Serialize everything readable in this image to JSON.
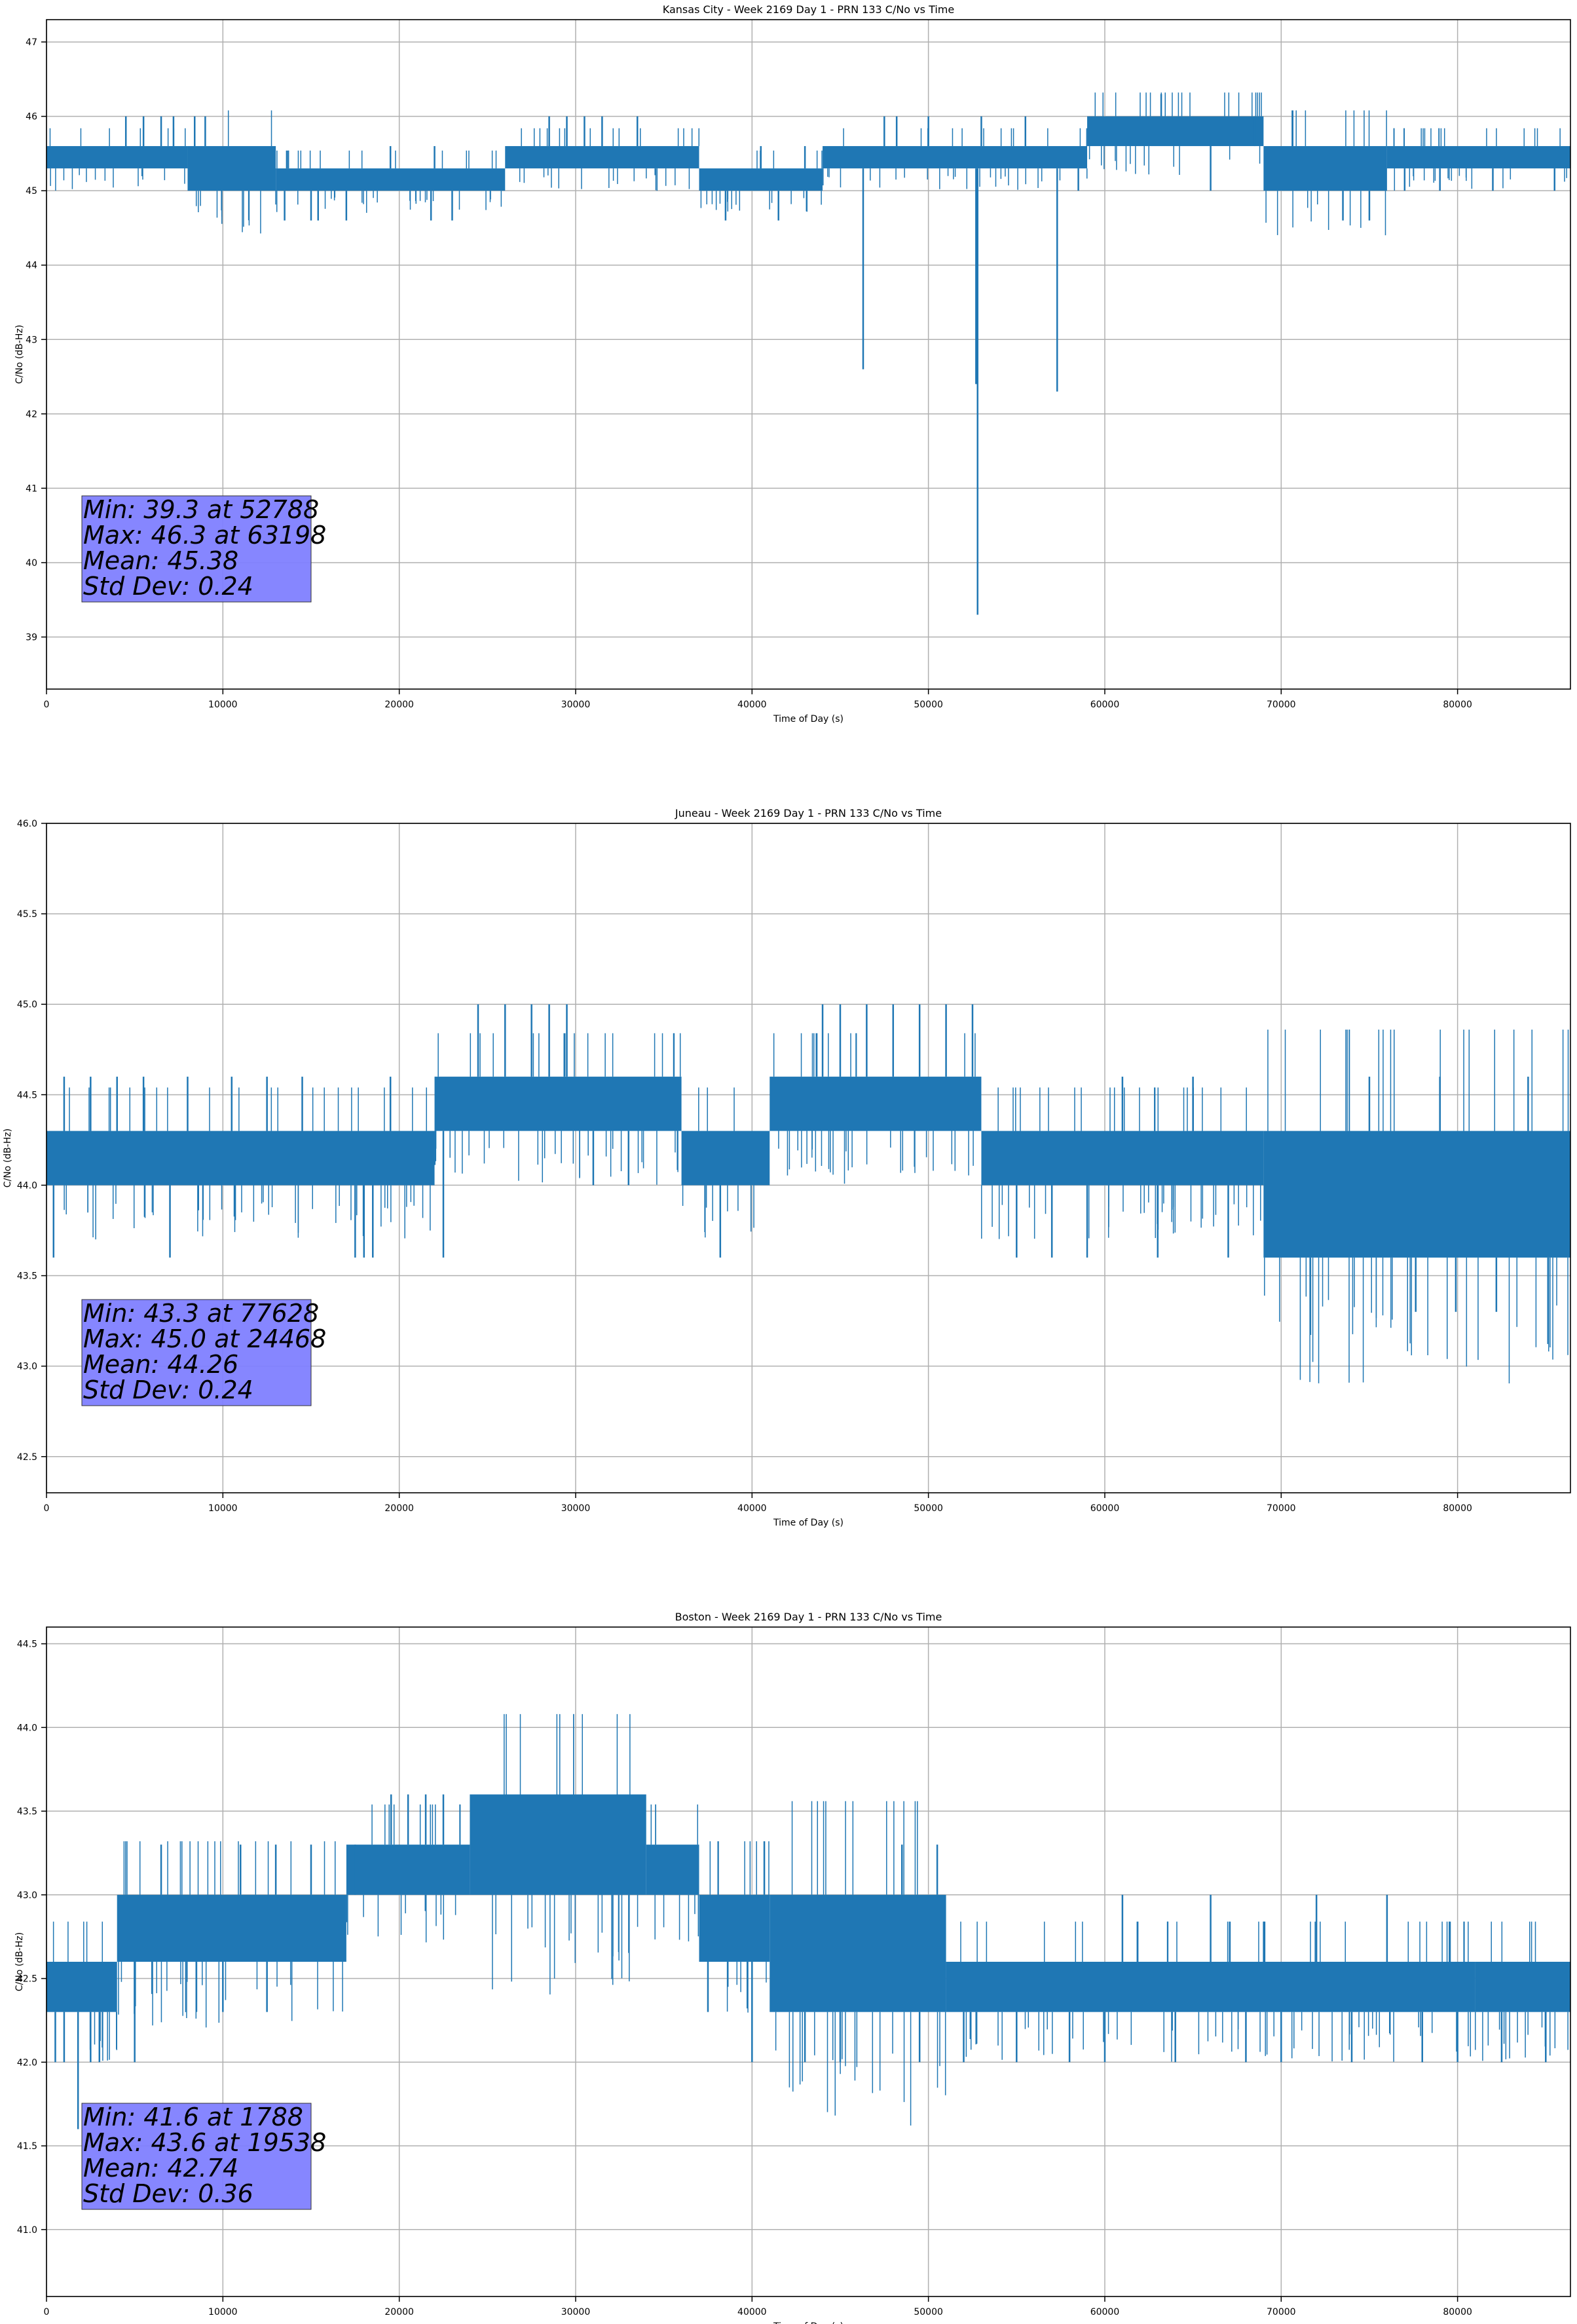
{
  "chart_data": [
    {
      "type": "line",
      "title": "Kansas City - Week 2169 Day 1 - PRN 133 C/No vs Time",
      "xlabel": "Time of Day (s)",
      "ylabel": "C/No (dB-Hz)",
      "xlim": [
        0,
        86400
      ],
      "ylim": [
        38.3,
        47.3
      ],
      "xticks": [
        0,
        10000,
        20000,
        30000,
        40000,
        50000,
        60000,
        70000,
        80000
      ],
      "yticks": [
        39,
        40,
        41,
        42,
        43,
        44,
        45,
        46,
        47
      ],
      "grid": true,
      "color": "#1f77b4",
      "series": [
        {
          "name": "C/No",
          "bands": [
            {
              "x": [
                0,
                8000
              ],
              "lo": 45.3,
              "hi": 45.6
            },
            {
              "x": [
                8000,
                13000
              ],
              "lo": 45.0,
              "hi": 45.6
            },
            {
              "x": [
                13000,
                26000
              ],
              "lo": 45.0,
              "hi": 45.3
            },
            {
              "x": [
                26000,
                37000
              ],
              "lo": 45.3,
              "hi": 45.6
            },
            {
              "x": [
                37000,
                44000
              ],
              "lo": 45.0,
              "hi": 45.3
            },
            {
              "x": [
                44000,
                59000
              ],
              "lo": 45.3,
              "hi": 45.6
            },
            {
              "x": [
                59000,
                69000
              ],
              "lo": 45.6,
              "hi": 46.0
            },
            {
              "x": [
                69000,
                76000
              ],
              "lo": 45.0,
              "hi": 45.6
            },
            {
              "x": [
                76000,
                86400
              ],
              "lo": 45.3,
              "hi": 45.6
            }
          ],
          "spikes": [
            [
              4500,
              46.0
            ],
            [
              5500,
              46.0
            ],
            [
              6500,
              46.0
            ],
            [
              7200,
              46.0
            ],
            [
              8400,
              46.0
            ],
            [
              9000,
              46.0
            ],
            [
              9800,
              45.0
            ],
            [
              11800,
              45.0
            ],
            [
              13500,
              44.6
            ],
            [
              15000,
              44.6
            ],
            [
              15400,
              44.6
            ],
            [
              17000,
              44.6
            ],
            [
              19500,
              45.6
            ],
            [
              21800,
              44.6
            ],
            [
              22000,
              45.6
            ],
            [
              23000,
              44.6
            ],
            [
              25000,
              45.0
            ],
            [
              28500,
              46.0
            ],
            [
              29500,
              46.0
            ],
            [
              30500,
              46.0
            ],
            [
              31500,
              46.0
            ],
            [
              33500,
              46.0
            ],
            [
              38000,
              45.0
            ],
            [
              38500,
              44.6
            ],
            [
              40500,
              45.6
            ],
            [
              41500,
              44.6
            ],
            [
              43000,
              45.6
            ],
            [
              46300,
              42.6
            ],
            [
              47500,
              46.0
            ],
            [
              48200,
              46.0
            ],
            [
              50000,
              46.0
            ],
            [
              52700,
              42.4
            ],
            [
              52788,
              39.3
            ],
            [
              53000,
              46.0
            ],
            [
              55500,
              46.0
            ],
            [
              57300,
              42.3
            ],
            [
              58500,
              45.0
            ],
            [
              63198,
              46.3
            ],
            [
              66000,
              45.0
            ],
            [
              68500,
              46.0
            ],
            [
              71000,
              45.0
            ],
            [
              73500,
              44.6
            ],
            [
              74500,
              45.0
            ],
            [
              75000,
              44.6
            ],
            [
              77000,
              45.0
            ],
            [
              79000,
              45.0
            ],
            [
              82000,
              45.0
            ],
            [
              85500,
              45.0
            ]
          ]
        }
      ],
      "stats": [
        "Min: 39.3 at 52788",
        "Max: 46.3 at 63198",
        "Mean: 45.38",
        "Std Dev: 0.24"
      ],
      "stats_box_color": "#8080ff"
    },
    {
      "type": "line",
      "title": "Juneau - Week 2169 Day 1 - PRN 133 C/No vs Time",
      "xlabel": "Time of Day (s)",
      "ylabel": "C/No (dB-Hz)",
      "xlim": [
        0,
        86400
      ],
      "ylim": [
        42.3,
        46.0
      ],
      "xticks": [
        0,
        10000,
        20000,
        30000,
        40000,
        50000,
        60000,
        70000,
        80000
      ],
      "yticks": [
        42.5,
        43.0,
        43.5,
        44.0,
        44.5,
        45.0,
        45.5,
        46.0
      ],
      "grid": true,
      "color": "#1f77b4",
      "series": [
        {
          "name": "C/No",
          "bands": [
            {
              "x": [
                0,
                22000
              ],
              "lo": 44.0,
              "hi": 44.3
            },
            {
              "x": [
                22000,
                36000
              ],
              "lo": 44.3,
              "hi": 44.6
            },
            {
              "x": [
                36000,
                41000
              ],
              "lo": 44.0,
              "hi": 44.3
            },
            {
              "x": [
                41000,
                53000
              ],
              "lo": 44.3,
              "hi": 44.6
            },
            {
              "x": [
                53000,
                69000
              ],
              "lo": 44.0,
              "hi": 44.3
            },
            {
              "x": [
                69000,
                86400
              ],
              "lo": 43.6,
              "hi": 44.3
            }
          ],
          "spikes": [
            [
              400,
              43.6
            ],
            [
              1000,
              44.6
            ],
            [
              2500,
              44.6
            ],
            [
              4000,
              44.6
            ],
            [
              5500,
              44.6
            ],
            [
              7000,
              43.6
            ],
            [
              8000,
              44.6
            ],
            [
              10500,
              44.6
            ],
            [
              12500,
              44.6
            ],
            [
              14500,
              44.6
            ],
            [
              17500,
              43.6
            ],
            [
              18000,
              43.6
            ],
            [
              18500,
              43.6
            ],
            [
              19500,
              44.6
            ],
            [
              22500,
              43.6
            ],
            [
              24468,
              45.0
            ],
            [
              26000,
              45.0
            ],
            [
              27500,
              45.0
            ],
            [
              28500,
              45.0
            ],
            [
              29500,
              45.0
            ],
            [
              31000,
              44.0
            ],
            [
              33000,
              44.0
            ],
            [
              38200,
              43.6
            ],
            [
              44000,
              45.0
            ],
            [
              45000,
              45.0
            ],
            [
              46500,
              45.0
            ],
            [
              48000,
              45.0
            ],
            [
              49500,
              45.0
            ],
            [
              51000,
              45.0
            ],
            [
              52500,
              45.0
            ],
            [
              55000,
              43.6
            ],
            [
              57000,
              43.6
            ],
            [
              59000,
              43.6
            ],
            [
              61000,
              44.6
            ],
            [
              63000,
              43.6
            ],
            [
              65000,
              44.6
            ],
            [
              67000,
              43.6
            ],
            [
              72000,
              43.6
            ],
            [
              75000,
              44.6
            ],
            [
              77628,
              43.3
            ],
            [
              79000,
              44.6
            ],
            [
              79900,
              43.3
            ],
            [
              82200,
              43.3
            ],
            [
              84000,
              44.6
            ]
          ]
        }
      ],
      "stats": [
        "Min: 43.3 at 77628",
        "Max: 45.0 at 24468",
        "Mean: 44.26",
        "Std Dev: 0.24"
      ],
      "stats_box_color": "#8080ff"
    },
    {
      "type": "line",
      "title": "Boston - Week 2169 Day 1 - PRN 133 C/No vs Time",
      "xlabel": "Time of Day (s)",
      "ylabel": "C/No (dB-Hz)",
      "xlim": [
        0,
        86400
      ],
      "ylim": [
        40.6,
        44.6
      ],
      "xticks": [
        0,
        10000,
        20000,
        30000,
        40000,
        50000,
        60000,
        70000,
        80000
      ],
      "yticks": [
        41.0,
        41.5,
        42.0,
        42.5,
        43.0,
        43.5,
        44.0,
        44.5
      ],
      "grid": true,
      "color": "#1f77b4",
      "series": [
        {
          "name": "C/No",
          "bands": [
            {
              "x": [
                0,
                4000
              ],
              "lo": 42.3,
              "hi": 42.6
            },
            {
              "x": [
                4000,
                17000
              ],
              "lo": 42.6,
              "hi": 43.0
            },
            {
              "x": [
                17000,
                24000
              ],
              "lo": 43.0,
              "hi": 43.3
            },
            {
              "x": [
                24000,
                34000
              ],
              "lo": 43.0,
              "hi": 43.6
            },
            {
              "x": [
                34000,
                37000
              ],
              "lo": 43.0,
              "hi": 43.3
            },
            {
              "x": [
                37000,
                41000
              ],
              "lo": 42.6,
              "hi": 43.0
            },
            {
              "x": [
                41000,
                51000
              ],
              "lo": 42.3,
              "hi": 43.0
            },
            {
              "x": [
                51000,
                81000
              ],
              "lo": 42.3,
              "hi": 42.6
            },
            {
              "x": [
                81000,
                86400
              ],
              "lo": 42.3,
              "hi": 42.6
            }
          ],
          "spikes": [
            [
              500,
              42.0
            ],
            [
              1000,
              42.0
            ],
            [
              1788,
              41.6
            ],
            [
              2500,
              42.0
            ],
            [
              3000,
              42.0
            ],
            [
              5000,
              42.0
            ],
            [
              6500,
              43.3
            ],
            [
              8500,
              42.3
            ],
            [
              10000,
              42.3
            ],
            [
              11000,
              43.3
            ],
            [
              12500,
              42.3
            ],
            [
              13000,
              43.3
            ],
            [
              15000,
              43.3
            ],
            [
              17500,
              43.3
            ],
            [
              19538,
              43.6
            ],
            [
              20500,
              43.6
            ],
            [
              21500,
              43.6
            ],
            [
              22500,
              43.6
            ],
            [
              37500,
              42.3
            ],
            [
              40000,
              42.0
            ],
            [
              43000,
              42.0
            ],
            [
              45000,
              42.0
            ],
            [
              48500,
              43.3
            ],
            [
              49500,
              42.0
            ],
            [
              50500,
              43.3
            ],
            [
              52000,
              42.0
            ],
            [
              55000,
              42.0
            ],
            [
              58000,
              42.0
            ],
            [
              60000,
              42.0
            ],
            [
              61000,
              43.0
            ],
            [
              64000,
              42.0
            ],
            [
              66000,
              43.0
            ],
            [
              68000,
              42.0
            ],
            [
              70000,
              42.0
            ],
            [
              72000,
              43.0
            ],
            [
              74000,
              42.0
            ],
            [
              76000,
              43.0
            ],
            [
              78000,
              42.0
            ],
            [
              80000,
              42.0
            ],
            [
              82500,
              42.0
            ],
            [
              85000,
              42.0
            ]
          ]
        }
      ],
      "stats": [
        "Min: 41.6 at 1788",
        "Max: 43.6 at 19538",
        "Mean: 42.74",
        "Std Dev: 0.36"
      ],
      "stats_box_color": "#8080ff"
    }
  ]
}
